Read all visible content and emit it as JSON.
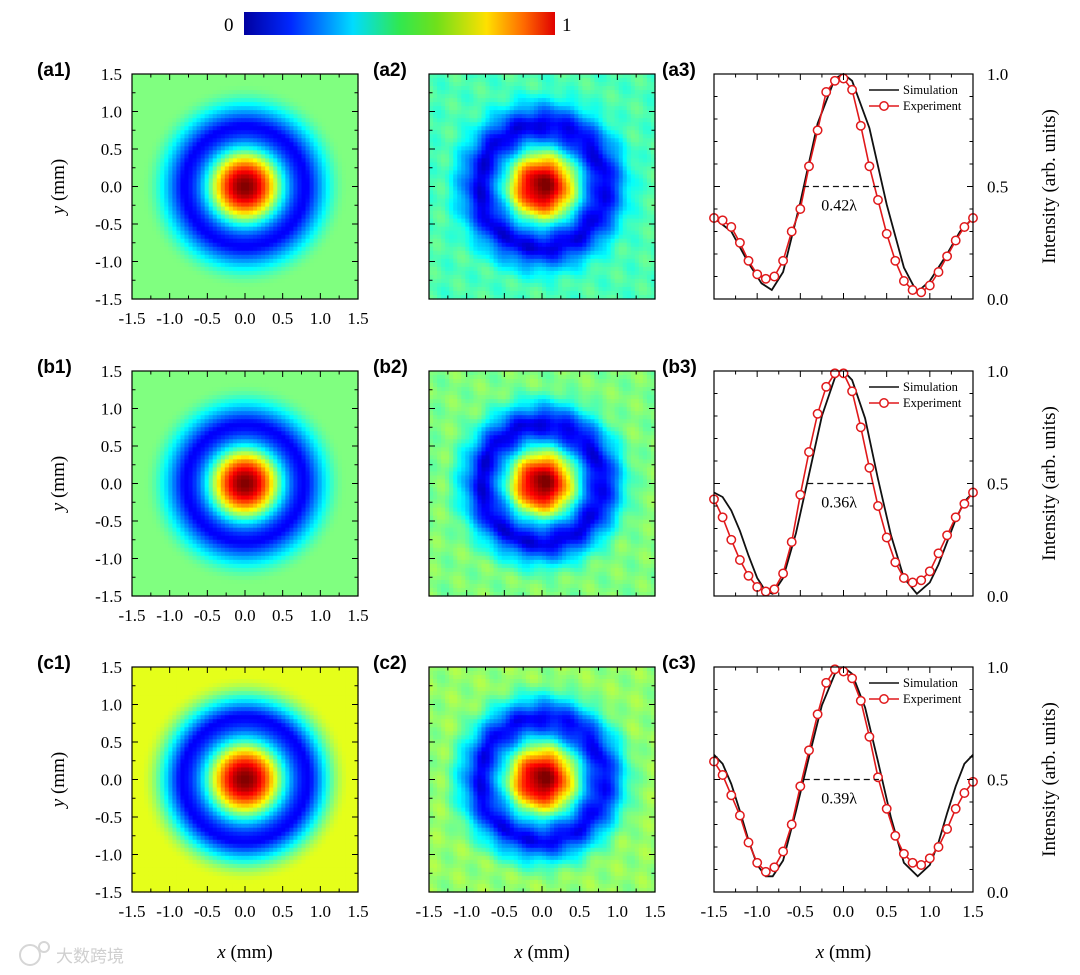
{
  "colorbar": {
    "min_label": "0",
    "max_label": "1"
  },
  "watermark": "大数跨境",
  "colors": {
    "simulation": "#111111",
    "experiment": "#e0191b",
    "marker_fill": "#ffffff",
    "dashed": "#111111"
  },
  "chart_data": [
    {
      "type": "heatmap",
      "id": "a1",
      "panel_label": "(a1)",
      "variant": "simulation",
      "xlim": [
        -1.5,
        1.5
      ],
      "ylim": [
        -1.5,
        1.5
      ],
      "xticks": [
        "-1.5",
        "-1.0",
        "-0.5",
        "0.0",
        "0.5",
        "1.0",
        "1.5"
      ],
      "yticks": [
        "1.5",
        "1.0",
        "0.5",
        "0.0",
        "-0.5",
        "-1.0",
        "-1.5"
      ],
      "ylabel": "y (mm)",
      "xlabel": "",
      "ring_profile": {
        "center_value": 1.0,
        "null_radius_mm": 0.82,
        "null_value": 0.12,
        "outer_value": 0.5
      },
      "colorscale": "jet",
      "vmin": 0,
      "vmax": 1
    },
    {
      "type": "heatmap",
      "id": "a2",
      "panel_label": "(a2)",
      "variant": "experiment",
      "xlim": [
        -1.5,
        1.5
      ],
      "ylim": [
        -1.5,
        1.5
      ],
      "ring_profile": {
        "center_value": 1.0,
        "null_radius_mm": 0.85,
        "null_value": 0.1,
        "outer_value": 0.45
      },
      "colorscale": "jet",
      "vmin": 0,
      "vmax": 1
    },
    {
      "type": "line",
      "id": "a3",
      "panel_label": "(a3)",
      "xlim": [
        -1.5,
        1.5
      ],
      "ylim": [
        0.0,
        1.0
      ],
      "ylabel": "Intensity (arb. units)",
      "yticks": [
        "0.0",
        "0.5",
        "1.0"
      ],
      "legend": [
        "Simulation",
        "Experiment"
      ],
      "fwhm_label": "0.42λ",
      "fwhm_range": [
        -0.47,
        0.43
      ],
      "fwhm_y": 0.5,
      "series": [
        {
          "name": "Simulation",
          "x": [
            -1.5,
            -1.3,
            -1.1,
            -0.95,
            -0.83,
            -0.7,
            -0.5,
            -0.3,
            -0.1,
            0.0,
            0.1,
            0.3,
            0.5,
            0.7,
            0.85,
            1.0,
            1.2,
            1.35,
            1.5
          ],
          "y": [
            0.36,
            0.3,
            0.16,
            0.07,
            0.04,
            0.12,
            0.43,
            0.78,
            0.98,
            1.0,
            0.97,
            0.76,
            0.42,
            0.14,
            0.03,
            0.08,
            0.2,
            0.3,
            0.36
          ]
        },
        {
          "name": "Experiment",
          "x": [
            -1.5,
            -1.4,
            -1.3,
            -1.2,
            -1.1,
            -1.0,
            -0.9,
            -0.8,
            -0.7,
            -0.6,
            -0.5,
            -0.4,
            -0.3,
            -0.2,
            -0.1,
            0.0,
            0.1,
            0.2,
            0.3,
            0.4,
            0.5,
            0.6,
            0.7,
            0.8,
            0.9,
            1.0,
            1.1,
            1.2,
            1.3,
            1.4,
            1.5
          ],
          "y": [
            0.36,
            0.35,
            0.32,
            0.25,
            0.17,
            0.11,
            0.09,
            0.1,
            0.17,
            0.3,
            0.4,
            0.59,
            0.75,
            0.92,
            0.97,
            0.98,
            0.93,
            0.77,
            0.59,
            0.44,
            0.29,
            0.17,
            0.08,
            0.04,
            0.03,
            0.06,
            0.12,
            0.19,
            0.26,
            0.32,
            0.36
          ]
        }
      ]
    },
    {
      "type": "heatmap",
      "id": "b1",
      "panel_label": "(b1)",
      "variant": "simulation",
      "xlim": [
        -1.5,
        1.5
      ],
      "ylim": [
        -1.5,
        1.5
      ],
      "xticks": [
        "-1.5",
        "-1.0",
        "-0.5",
        "0.0",
        "0.5",
        "1.0",
        "1.5"
      ],
      "yticks": [
        "1.5",
        "1.0",
        "0.5",
        "0.0",
        "-0.5",
        "-1.0",
        "-1.5"
      ],
      "ylabel": "y (mm)",
      "xlabel": "",
      "ring_profile": {
        "center_value": 1.0,
        "null_radius_mm": 0.8,
        "null_value": 0.12,
        "outer_value": 0.5
      },
      "colorscale": "jet",
      "vmin": 0,
      "vmax": 1
    },
    {
      "type": "heatmap",
      "id": "b2",
      "panel_label": "(b2)",
      "variant": "experiment",
      "xlim": [
        -1.5,
        1.5
      ],
      "ylim": [
        -1.5,
        1.5
      ],
      "ring_profile": {
        "center_value": 1.0,
        "null_radius_mm": 0.82,
        "null_value": 0.1,
        "outer_value": 0.5
      },
      "colorscale": "jet",
      "vmin": 0,
      "vmax": 1
    },
    {
      "type": "line",
      "id": "b3",
      "panel_label": "(b3)",
      "xlim": [
        -1.5,
        1.5
      ],
      "ylim": [
        0.0,
        1.0
      ],
      "ylabel": "Intensity (arb. units)",
      "yticks": [
        "0.0",
        "0.5",
        "1.0"
      ],
      "legend": [
        "Simulation",
        "Experiment"
      ],
      "fwhm_label": "0.36λ",
      "fwhm_range": [
        -0.42,
        0.38
      ],
      "fwhm_y": 0.5,
      "series": [
        {
          "name": "Simulation",
          "x": [
            -1.5,
            -1.4,
            -1.3,
            -1.2,
            -1.1,
            -1.0,
            -0.9,
            -0.82,
            -0.7,
            -0.55,
            -0.4,
            -0.25,
            -0.1,
            0.0,
            0.1,
            0.25,
            0.4,
            0.55,
            0.7,
            0.85,
            1.0,
            1.1,
            1.2,
            1.3,
            1.4,
            1.5
          ],
          "y": [
            0.46,
            0.44,
            0.38,
            0.29,
            0.18,
            0.08,
            0.02,
            0.01,
            0.08,
            0.28,
            0.54,
            0.8,
            0.97,
            1.0,
            0.96,
            0.79,
            0.52,
            0.27,
            0.08,
            0.01,
            0.06,
            0.14,
            0.24,
            0.34,
            0.42,
            0.46
          ]
        },
        {
          "name": "Experiment",
          "x": [
            -1.5,
            -1.4,
            -1.3,
            -1.2,
            -1.1,
            -1.0,
            -0.9,
            -0.8,
            -0.7,
            -0.6,
            -0.5,
            -0.4,
            -0.3,
            -0.2,
            -0.1,
            0.0,
            0.1,
            0.2,
            0.3,
            0.4,
            0.5,
            0.6,
            0.7,
            0.8,
            0.9,
            1.0,
            1.1,
            1.2,
            1.3,
            1.4,
            1.5
          ],
          "y": [
            0.43,
            0.35,
            0.25,
            0.16,
            0.09,
            0.04,
            0.02,
            0.03,
            0.1,
            0.24,
            0.45,
            0.64,
            0.81,
            0.93,
            0.99,
            0.99,
            0.91,
            0.75,
            0.57,
            0.4,
            0.26,
            0.15,
            0.08,
            0.06,
            0.07,
            0.11,
            0.19,
            0.27,
            0.35,
            0.41,
            0.46
          ]
        }
      ]
    },
    {
      "type": "heatmap",
      "id": "c1",
      "panel_label": "(c1)",
      "variant": "simulation",
      "xlim": [
        -1.5,
        1.5
      ],
      "ylim": [
        -1.5,
        1.5
      ],
      "xticks": [
        "-1.5",
        "-1.0",
        "-0.5",
        "0.0",
        "0.5",
        "1.0",
        "1.5"
      ],
      "yticks": [
        "1.5",
        "1.0",
        "0.5",
        "0.0",
        "-0.5",
        "-1.0",
        "-1.5"
      ],
      "ylabel": "y (mm)",
      "xlabel": "x (mm)",
      "ring_profile": {
        "center_value": 1.0,
        "null_radius_mm": 0.85,
        "null_value": 0.12,
        "outer_value": 0.6
      },
      "colorscale": "jet",
      "vmin": 0,
      "vmax": 1
    },
    {
      "type": "heatmap",
      "id": "c2",
      "panel_label": "(c2)",
      "variant": "experiment",
      "xlim": [
        -1.5,
        1.5
      ],
      "ylim": [
        -1.5,
        1.5
      ],
      "xticks": [
        "-1.5",
        "-1.0",
        "-0.5",
        "0.0",
        "0.5",
        "1.0",
        "1.5"
      ],
      "xlabel": "x (mm)",
      "ring_profile": {
        "center_value": 1.0,
        "null_radius_mm": 0.85,
        "null_value": 0.12,
        "outer_value": 0.52
      },
      "colorscale": "jet",
      "vmin": 0,
      "vmax": 1
    },
    {
      "type": "line",
      "id": "c3",
      "panel_label": "(c3)",
      "xlim": [
        -1.5,
        1.5
      ],
      "ylim": [
        0.0,
        1.0
      ],
      "xticks": [
        "-1.5",
        "-1.0",
        "-0.5",
        "0.0",
        "0.5",
        "1.0",
        "1.5"
      ],
      "xlabel": "x (mm)",
      "ylabel": "Intensity (arb. units)",
      "yticks": [
        "0.0",
        "0.5",
        "1.0"
      ],
      "legend": [
        "Simulation",
        "Experiment"
      ],
      "fwhm_label": "0.39λ",
      "fwhm_range": [
        -0.46,
        0.41
      ],
      "fwhm_y": 0.5,
      "series": [
        {
          "name": "Simulation",
          "x": [
            -1.5,
            -1.4,
            -1.3,
            -1.2,
            -1.1,
            -1.0,
            -0.9,
            -0.82,
            -0.7,
            -0.55,
            -0.4,
            -0.25,
            -0.1,
            0.0,
            0.1,
            0.25,
            0.4,
            0.55,
            0.7,
            0.86,
            1.0,
            1.1,
            1.2,
            1.3,
            1.4,
            1.5
          ],
          "y": [
            0.61,
            0.57,
            0.48,
            0.36,
            0.23,
            0.12,
            0.07,
            0.07,
            0.14,
            0.36,
            0.6,
            0.83,
            0.97,
            1.0,
            0.97,
            0.82,
            0.58,
            0.33,
            0.13,
            0.07,
            0.12,
            0.22,
            0.35,
            0.47,
            0.57,
            0.61
          ]
        },
        {
          "name": "Experiment",
          "x": [
            -1.5,
            -1.4,
            -1.3,
            -1.2,
            -1.1,
            -1.0,
            -0.9,
            -0.8,
            -0.7,
            -0.6,
            -0.5,
            -0.4,
            -0.3,
            -0.2,
            -0.1,
            0.0,
            0.1,
            0.2,
            0.3,
            0.4,
            0.5,
            0.6,
            0.7,
            0.8,
            0.9,
            1.0,
            1.1,
            1.2,
            1.3,
            1.4,
            1.5
          ],
          "y": [
            0.58,
            0.52,
            0.43,
            0.34,
            0.22,
            0.13,
            0.09,
            0.11,
            0.18,
            0.3,
            0.47,
            0.63,
            0.79,
            0.93,
            0.99,
            0.98,
            0.95,
            0.85,
            0.69,
            0.51,
            0.37,
            0.25,
            0.17,
            0.13,
            0.12,
            0.15,
            0.2,
            0.28,
            0.37,
            0.44,
            0.49
          ]
        }
      ]
    }
  ]
}
